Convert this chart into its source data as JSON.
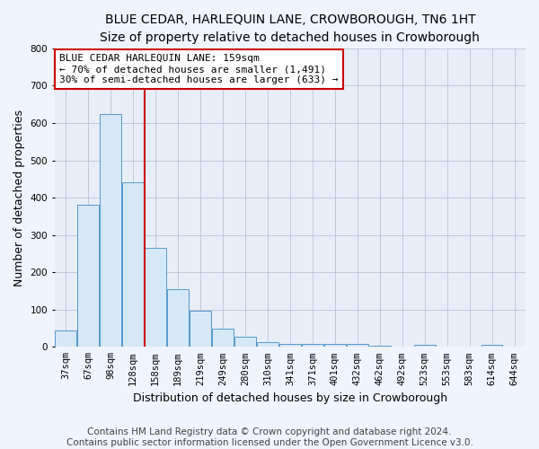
{
  "title": "BLUE CEDAR, HARLEQUIN LANE, CROWBOROUGH, TN6 1HT",
  "subtitle": "Size of property relative to detached houses in Crowborough",
  "xlabel": "Distribution of detached houses by size in Crowborough",
  "ylabel": "Number of detached properties",
  "footer_line1": "Contains HM Land Registry data © Crown copyright and database right 2024.",
  "footer_line2": "Contains public sector information licensed under the Open Government Licence v3.0.",
  "bar_labels": [
    "37sqm",
    "67sqm",
    "98sqm",
    "128sqm",
    "158sqm",
    "189sqm",
    "219sqm",
    "249sqm",
    "280sqm",
    "310sqm",
    "341sqm",
    "371sqm",
    "401sqm",
    "432sqm",
    "462sqm",
    "492sqm",
    "523sqm",
    "553sqm",
    "583sqm",
    "614sqm",
    "644sqm"
  ],
  "bar_values": [
    45,
    380,
    625,
    440,
    265,
    155,
    97,
    50,
    27,
    13,
    8,
    8,
    8,
    8,
    3,
    0,
    5,
    0,
    0,
    5,
    0
  ],
  "bar_color": "#d6e8f7",
  "bar_edge_color": "#5599cc",
  "red_line_x": 3.5,
  "red_line_color": "#cc0000",
  "annotation_text": "BLUE CEDAR HARLEQUIN LANE: 159sqm\n← 70% of detached houses are smaller (1,491)\n30% of semi-detached houses are larger (633) →",
  "annotation_box_color": "#ffffff",
  "annotation_box_edge": "#cc0000",
  "ylim": [
    0,
    800
  ],
  "yticks": [
    0,
    100,
    200,
    300,
    400,
    500,
    600,
    700,
    800
  ],
  "bg_color": "#f0f4ff",
  "plot_bg_color": "#e8eef8",
  "grid_color": "#b0b8cc",
  "title_fontsize": 10,
  "subtitle_fontsize": 9,
  "label_fontsize": 9,
  "tick_fontsize": 7.5,
  "footer_fontsize": 7.5,
  "ann_fontsize": 8
}
